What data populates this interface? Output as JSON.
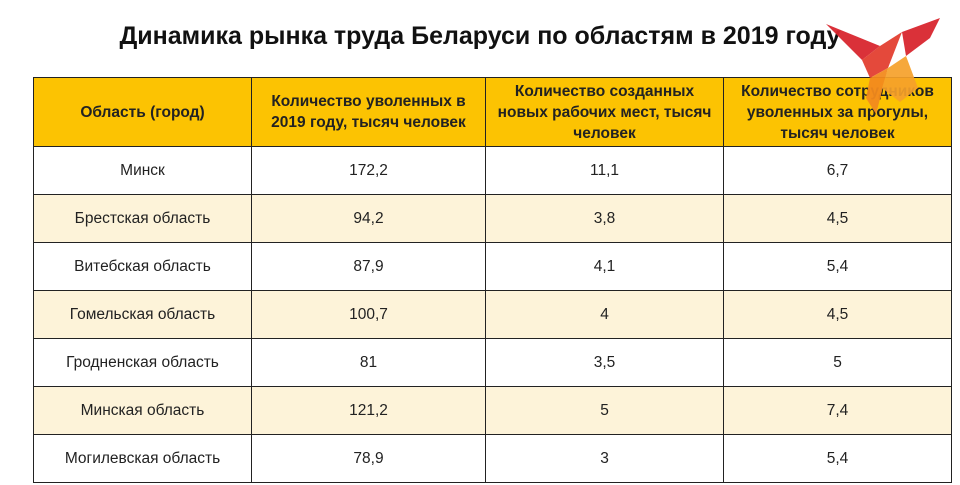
{
  "title": "Динамика рынка труда Беларуси по областям в 2019 году",
  "colors": {
    "header_bg": "#fcc302",
    "row_alt_bg": "#fdf3d9",
    "row_bg": "#ffffff",
    "border": "#222222",
    "logo_red": "#d8262e",
    "logo_orange": "#f28a1e"
  },
  "logo": {
    "icon": "bird-logo-icon"
  },
  "chart_data": {
    "type": "table",
    "title": "Динамика рынка труда Беларуси по областям в 2019 году",
    "columns": [
      "Область (город)",
      "Количество уволенных в 2019 году, тысяч человек",
      "Количество созданных новых рабочих мест, тысяч человек",
      "Количество сотрудников уволенных за прогулы, тысяч человек"
    ],
    "rows": [
      [
        "Минск",
        "172,2",
        "11,1",
        "6,7"
      ],
      [
        "Брестская область",
        "94,2",
        "3,8",
        "4,5"
      ],
      [
        "Витебская область",
        "87,9",
        "4,1",
        "5,4"
      ],
      [
        "Гомельская область",
        "100,7",
        "4",
        "4,5"
      ],
      [
        "Гродненская область",
        "81",
        "3,5",
        "5"
      ],
      [
        "Минская область",
        "121,2",
        "5",
        "7,4"
      ],
      [
        "Могилевская область",
        "78,9",
        "3",
        "5,4"
      ]
    ]
  }
}
